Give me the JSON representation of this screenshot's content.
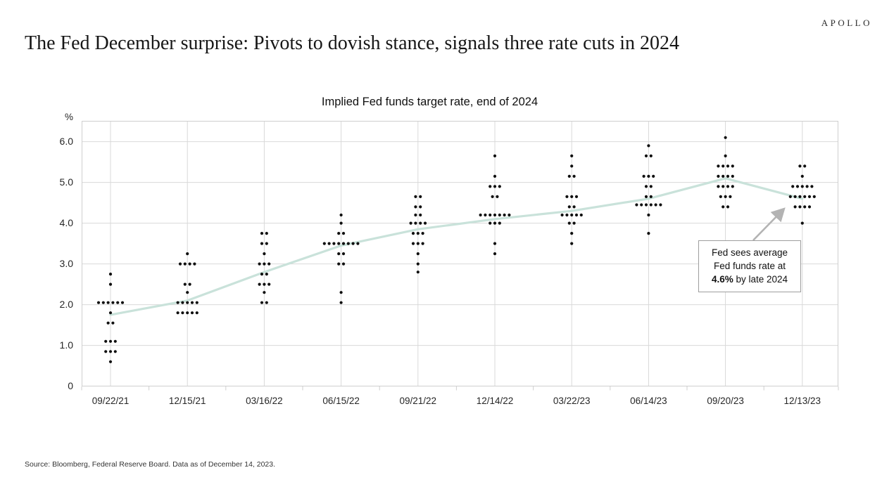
{
  "brand": "APOLLO",
  "page_title": "The Fed December surprise: Pivots to dovish stance, signals three rate cuts in 2024",
  "source_note": "Source: Bloomberg, Federal Reserve Board. Data as of December 14, 2023.",
  "annotation": {
    "lines": [
      "Fed sees average",
      "Fed funds rate at"
    ],
    "rate": "4.6%",
    "suffix": " by late 2024"
  },
  "chart_data": {
    "type": "scatter",
    "title": "Implied Fed funds target rate, end of 2024",
    "unit_label": "%",
    "xlabel": "",
    "ylabel": "%",
    "ylim": [
      0,
      6.5
    ],
    "grid": true,
    "legend": "none",
    "y_tick_values": [
      6,
      5,
      4,
      3,
      2,
      1,
      0
    ],
    "y_tick_labels": [
      "6.0",
      "5.0",
      "4.0",
      "3.0",
      "2.0",
      "1.0",
      "0"
    ],
    "categories": [
      "09/22/21",
      "12/15/21",
      "03/16/22",
      "06/15/22",
      "09/21/22",
      "12/14/22",
      "03/22/23",
      "06/14/23",
      "09/20/23",
      "12/13/23"
    ],
    "colors": {
      "dot": "#0f0f0f",
      "median_line": "#c9e2da",
      "gridline": "#d9d9d9",
      "border": "#cfcfcf",
      "arrow": "#b3b3b3"
    },
    "series": [
      {
        "name": "FOMC participant projections (dot plot)",
        "type": "dots",
        "columns": [
          {
            "date": "09/22/21",
            "dots": [
              {
                "value": 2.75,
                "count": 1
              },
              {
                "value": 2.5,
                "count": 1
              },
              {
                "value": 2.05,
                "count": 6
              },
              {
                "value": 1.8,
                "count": 1
              },
              {
                "value": 1.55,
                "count": 2
              },
              {
                "value": 1.1,
                "count": 3
              },
              {
                "value": 0.85,
                "count": 3
              },
              {
                "value": 0.6,
                "count": 1
              }
            ]
          },
          {
            "date": "12/15/21",
            "dots": [
              {
                "value": 3.25,
                "count": 1
              },
              {
                "value": 3.0,
                "count": 4
              },
              {
                "value": 2.5,
                "count": 2
              },
              {
                "value": 2.3,
                "count": 1
              },
              {
                "value": 2.05,
                "count": 5
              },
              {
                "value": 1.8,
                "count": 5
              }
            ]
          },
          {
            "date": "03/16/22",
            "dots": [
              {
                "value": 3.75,
                "count": 2
              },
              {
                "value": 3.5,
                "count": 2
              },
              {
                "value": 3.25,
                "count": 1
              },
              {
                "value": 3.0,
                "count": 3
              },
              {
                "value": 2.75,
                "count": 2
              },
              {
                "value": 2.5,
                "count": 3
              },
              {
                "value": 2.3,
                "count": 1
              },
              {
                "value": 2.05,
                "count": 2
              }
            ]
          },
          {
            "date": "06/15/22",
            "dots": [
              {
                "value": 4.2,
                "count": 1
              },
              {
                "value": 4.0,
                "count": 1
              },
              {
                "value": 3.75,
                "count": 2
              },
              {
                "value": 3.5,
                "count": 8
              },
              {
                "value": 3.25,
                "count": 2
              },
              {
                "value": 3.0,
                "count": 2
              },
              {
                "value": 2.3,
                "count": 1
              },
              {
                "value": 2.05,
                "count": 1
              }
            ]
          },
          {
            "date": "09/21/22",
            "dots": [
              {
                "value": 4.65,
                "count": 2
              },
              {
                "value": 4.4,
                "count": 2
              },
              {
                "value": 4.2,
                "count": 2
              },
              {
                "value": 4.0,
                "count": 4
              },
              {
                "value": 3.75,
                "count": 3
              },
              {
                "value": 3.5,
                "count": 3
              },
              {
                "value": 3.25,
                "count": 1
              },
              {
                "value": 3.0,
                "count": 1
              },
              {
                "value": 2.8,
                "count": 1
              }
            ]
          },
          {
            "date": "12/14/22",
            "dots": [
              {
                "value": 5.65,
                "count": 1
              },
              {
                "value": 5.15,
                "count": 1
              },
              {
                "value": 4.9,
                "count": 3
              },
              {
                "value": 4.65,
                "count": 2
              },
              {
                "value": 4.2,
                "count": 7
              },
              {
                "value": 4.0,
                "count": 3
              },
              {
                "value": 3.5,
                "count": 1
              },
              {
                "value": 3.25,
                "count": 1
              }
            ]
          },
          {
            "date": "03/22/23",
            "dots": [
              {
                "value": 5.65,
                "count": 1
              },
              {
                "value": 5.4,
                "count": 1
              },
              {
                "value": 5.15,
                "count": 2
              },
              {
                "value": 4.65,
                "count": 3
              },
              {
                "value": 4.4,
                "count": 2
              },
              {
                "value": 4.2,
                "count": 5
              },
              {
                "value": 4.0,
                "count": 2
              },
              {
                "value": 3.75,
                "count": 1
              },
              {
                "value": 3.5,
                "count": 1
              }
            ]
          },
          {
            "date": "06/14/23",
            "dots": [
              {
                "value": 5.9,
                "count": 1
              },
              {
                "value": 5.65,
                "count": 2
              },
              {
                "value": 5.15,
                "count": 3
              },
              {
                "value": 4.9,
                "count": 2
              },
              {
                "value": 4.65,
                "count": 2
              },
              {
                "value": 4.45,
                "count": 6
              },
              {
                "value": 4.2,
                "count": 1
              },
              {
                "value": 3.75,
                "count": 1
              }
            ]
          },
          {
            "date": "09/20/23",
            "dots": [
              {
                "value": 6.1,
                "count": 1
              },
              {
                "value": 5.65,
                "count": 1
              },
              {
                "value": 5.4,
                "count": 4
              },
              {
                "value": 5.15,
                "count": 4
              },
              {
                "value": 4.9,
                "count": 4
              },
              {
                "value": 4.65,
                "count": 3
              },
              {
                "value": 4.4,
                "count": 2
              }
            ]
          },
          {
            "date": "12/13/23",
            "dots": [
              {
                "value": 5.4,
                "count": 2
              },
              {
                "value": 5.15,
                "count": 1
              },
              {
                "value": 4.9,
                "count": 5
              },
              {
                "value": 4.65,
                "count": 6
              },
              {
                "value": 4.4,
                "count": 4
              },
              {
                "value": 4.0,
                "count": 1
              }
            ]
          }
        ]
      },
      {
        "name": "Median implied Fed funds target rate",
        "type": "line",
        "values": [
          1.75,
          2.1,
          2.8,
          3.45,
          3.85,
          4.1,
          4.3,
          4.6,
          5.1,
          4.6
        ]
      }
    ]
  }
}
